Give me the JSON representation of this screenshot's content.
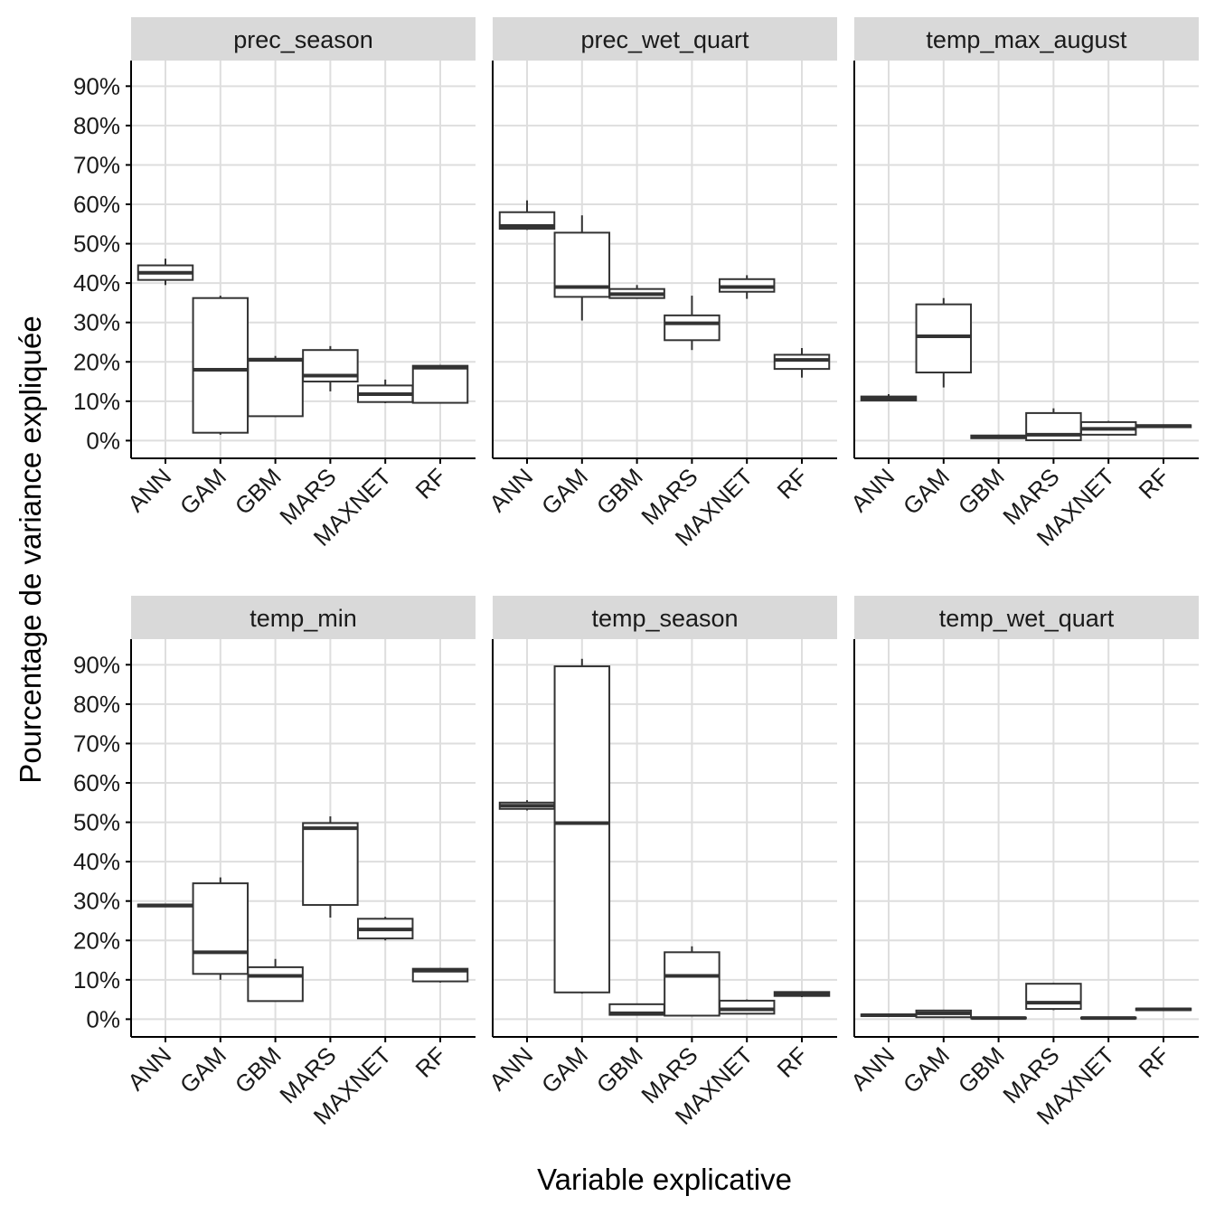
{
  "chart_data": {
    "type": "boxplot",
    "facet_layout": {
      "rows": 2,
      "cols": 3
    },
    "xlabel": "Variable explicative",
    "ylabel": "Pourcentage de variance expliquée",
    "categories": [
      "ANN",
      "GAM",
      "GBM",
      "MARS",
      "MAXNET",
      "RF"
    ],
    "y_ticks": [
      0,
      10,
      20,
      30,
      40,
      50,
      60,
      70,
      80,
      90
    ],
    "y_tick_labels": [
      "0%",
      "10%",
      "20%",
      "30%",
      "40%",
      "50%",
      "60%",
      "70%",
      "80%",
      "90%"
    ],
    "ylim": [
      -4.5,
      96.5
    ],
    "grid": true,
    "colors": {
      "strip_bg": "#d9d9d9",
      "grid": "#dedede",
      "box": "#333333",
      "axis": "#000000"
    },
    "facets": [
      {
        "title": "prec_season",
        "boxes": [
          {
            "category": "ANN",
            "min": 39.5,
            "q1": 40.8,
            "median": 42.6,
            "q3": 44.5,
            "max": 46.2
          },
          {
            "category": "GAM",
            "min": 1.5,
            "q1": 2.0,
            "median": 18.0,
            "q3": 36.2,
            "max": 36.8
          },
          {
            "category": "GBM",
            "min": 6.0,
            "q1": 6.2,
            "median": 20.5,
            "q3": 20.8,
            "max": 21.5
          },
          {
            "category": "MARS",
            "min": 12.5,
            "q1": 15.0,
            "median": 16.5,
            "q3": 23.0,
            "max": 24.0
          },
          {
            "category": "MAXNET",
            "min": 9.5,
            "q1": 9.8,
            "median": 11.8,
            "q3": 14.0,
            "max": 15.5
          },
          {
            "category": "RF",
            "min": 9.5,
            "q1": 9.6,
            "median": 18.5,
            "q3": 19.0,
            "max": 19.2
          }
        ]
      },
      {
        "title": "prec_wet_quart",
        "boxes": [
          {
            "category": "ANN",
            "min": 53.5,
            "q1": 53.8,
            "median": 54.5,
            "q3": 58.0,
            "max": 61.0
          },
          {
            "category": "GAM",
            "min": 30.5,
            "q1": 36.5,
            "median": 39.0,
            "q3": 52.8,
            "max": 57.2
          },
          {
            "category": "GBM",
            "min": 36.0,
            "q1": 36.2,
            "median": 37.2,
            "q3": 38.5,
            "max": 39.5
          },
          {
            "category": "MARS",
            "min": 23.0,
            "q1": 25.5,
            "median": 29.8,
            "q3": 31.8,
            "max": 36.8
          },
          {
            "category": "MAXNET",
            "min": 36.0,
            "q1": 37.8,
            "median": 39.0,
            "q3": 41.0,
            "max": 42.0
          },
          {
            "category": "RF",
            "min": 16.0,
            "q1": 18.2,
            "median": 20.5,
            "q3": 21.8,
            "max": 23.5
          }
        ]
      },
      {
        "title": "temp_max_august",
        "boxes": [
          {
            "category": "ANN",
            "min": 10.0,
            "q1": 10.2,
            "median": 10.8,
            "q3": 11.2,
            "max": 11.8
          },
          {
            "category": "GAM",
            "min": 13.5,
            "q1": 17.3,
            "median": 26.5,
            "q3": 34.6,
            "max": 36.2
          },
          {
            "category": "GBM",
            "min": 0.5,
            "q1": 0.6,
            "median": 0.9,
            "q3": 1.3,
            "max": 1.5
          },
          {
            "category": "MARS",
            "min": 0.0,
            "q1": 0.1,
            "median": 1.5,
            "q3": 7.0,
            "max": 8.2
          },
          {
            "category": "MAXNET",
            "min": 1.3,
            "q1": 1.5,
            "median": 3.0,
            "q3": 4.7,
            "max": 5.0
          },
          {
            "category": "RF",
            "min": 3.2,
            "q1": 3.4,
            "median": 3.7,
            "q3": 3.9,
            "max": 4.1
          }
        ]
      },
      {
        "title": "temp_min",
        "boxes": [
          {
            "category": "ANN",
            "min": 28.5,
            "q1": 28.6,
            "median": 28.9,
            "q3": 29.1,
            "max": 29.3
          },
          {
            "category": "GAM",
            "min": 10.0,
            "q1": 11.5,
            "median": 17.0,
            "q3": 34.5,
            "max": 36.0
          },
          {
            "category": "GBM",
            "min": 4.5,
            "q1": 4.6,
            "median": 11.0,
            "q3": 13.2,
            "max": 15.3
          },
          {
            "category": "MARS",
            "min": 25.8,
            "q1": 29.0,
            "median": 48.5,
            "q3": 49.8,
            "max": 51.5
          },
          {
            "category": "MAXNET",
            "min": 20.0,
            "q1": 20.5,
            "median": 22.8,
            "q3": 25.5,
            "max": 26.0
          },
          {
            "category": "RF",
            "min": 9.3,
            "q1": 9.6,
            "median": 12.3,
            "q3": 12.8,
            "max": 13.0
          }
        ]
      },
      {
        "title": "temp_season",
        "boxes": [
          {
            "category": "ANN",
            "min": 53.0,
            "q1": 53.4,
            "median": 54.2,
            "q3": 55.0,
            "max": 55.6
          },
          {
            "category": "GAM",
            "min": 6.5,
            "q1": 6.8,
            "median": 49.8,
            "q3": 89.6,
            "max": 91.5
          },
          {
            "category": "GBM",
            "min": 1.0,
            "q1": 1.1,
            "median": 1.5,
            "q3": 3.8,
            "max": 4.0
          },
          {
            "category": "MARS",
            "min": 0.7,
            "q1": 0.9,
            "median": 11.0,
            "q3": 17.0,
            "max": 18.5
          },
          {
            "category": "MAXNET",
            "min": 1.2,
            "q1": 1.4,
            "median": 2.5,
            "q3": 4.7,
            "max": 5.0
          },
          {
            "category": "RF",
            "min": 5.6,
            "q1": 5.9,
            "median": 6.5,
            "q3": 6.9,
            "max": 7.1
          }
        ]
      },
      {
        "title": "temp_wet_quart",
        "boxes": [
          {
            "category": "ANN",
            "min": 0.7,
            "q1": 0.8,
            "median": 1.0,
            "q3": 1.2,
            "max": 1.3
          },
          {
            "category": "GAM",
            "min": 0.3,
            "q1": 0.5,
            "median": 1.5,
            "q3": 2.2,
            "max": 2.4
          },
          {
            "category": "GBM",
            "min": 0.1,
            "q1": 0.2,
            "median": 0.3,
            "q3": 0.4,
            "max": 0.5
          },
          {
            "category": "MARS",
            "min": 2.3,
            "q1": 2.6,
            "median": 4.2,
            "q3": 9.0,
            "max": 9.2
          },
          {
            "category": "MAXNET",
            "min": 0.1,
            "q1": 0.2,
            "median": 0.3,
            "q3": 0.4,
            "max": 0.5
          },
          {
            "category": "RF",
            "min": 2.2,
            "q1": 2.3,
            "median": 2.5,
            "q3": 2.7,
            "max": 2.8
          }
        ]
      }
    ]
  }
}
